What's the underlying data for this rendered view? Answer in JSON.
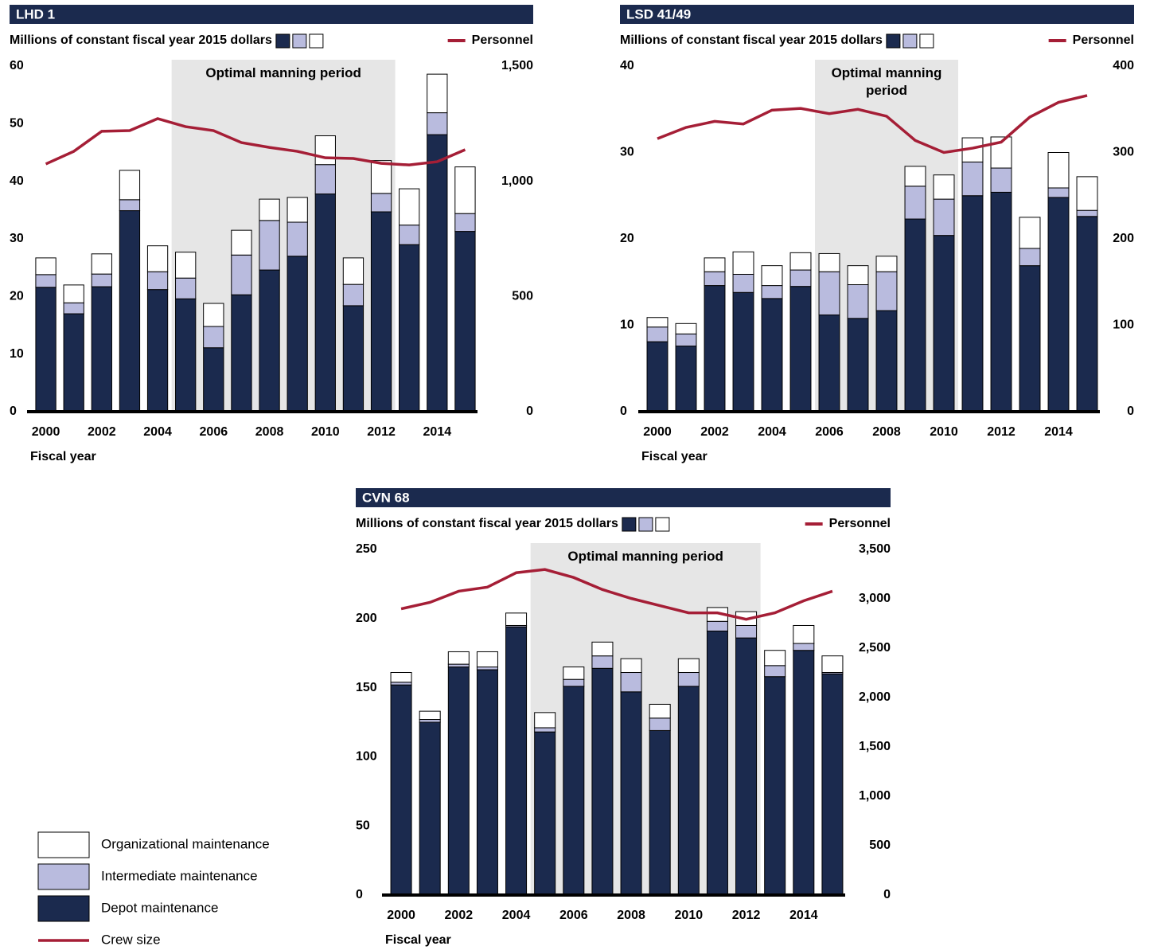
{
  "legend": [
    {
      "name": "Organizational maintenance",
      "color": "#ffffff"
    },
    {
      "name": "Intermediate maintenance",
      "color": "#b9bbde"
    },
    {
      "name": "Depot maintenance",
      "color": "#1b2a4e"
    },
    {
      "name": "Crew size",
      "color": "#a51e36"
    }
  ],
  "chart_data": [
    {
      "type": "bar",
      "title": "LHD 1",
      "subtitle": "Millions of constant fiscal year 2015 dollars",
      "x_label": "Fiscal year",
      "annotation": {
        "text": "Optimal manning period",
        "start": 2005,
        "end": 2012,
        "color": "#e6e6e6"
      },
      "categories": [
        "2000",
        null,
        "2002",
        null,
        "2004",
        null,
        "2006",
        null,
        "2008",
        null,
        "2010",
        null,
        "2012",
        null,
        "2014",
        null
      ],
      "series": [
        {
          "color": "#1b2a4e",
          "values": [
            21.6,
            17.0,
            21.7,
            34.9,
            21.2,
            19.6,
            11.1,
            20.3,
            24.6,
            27.0,
            37.8,
            18.4,
            34.7,
            29.0,
            48.1,
            31.3
          ]
        },
        {
          "color": "#b9bbde",
          "values": [
            2.2,
            1.9,
            2.2,
            1.9,
            3.1,
            3.6,
            3.7,
            6.9,
            8.6,
            5.9,
            5.1,
            3.7,
            3.2,
            3.4,
            3.8,
            3.1
          ]
        },
        {
          "color": "#ffffff",
          "values": [
            2.9,
            3.1,
            3.5,
            5.1,
            4.5,
            4.5,
            4.0,
            4.3,
            3.7,
            4.3,
            5.0,
            4.6,
            5.7,
            6.3,
            6.7,
            8.1
          ]
        }
      ],
      "line": {
        "name": "Personnel",
        "color": "#a51e36",
        "axis": "y2",
        "values": [
          1075,
          1130,
          1217,
          1220,
          1272,
          1237,
          1220,
          1168,
          1147,
          1130,
          1102,
          1099,
          1078,
          1071,
          1085,
          1137
        ]
      },
      "ylim": [
        0,
        60
      ],
      "yticks": [
        0,
        10,
        20,
        30,
        40,
        50,
        60
      ],
      "y2lim": [
        0,
        1500
      ],
      "y2ticks": [
        0,
        500,
        {
          "value": 1000,
          "label": "1,000"
        },
        {
          "value": 1500,
          "label": "1,500"
        }
      ]
    },
    {
      "type": "bar",
      "title": "LSD 41/49",
      "subtitle": "Millions of constant fiscal year 2015 dollars",
      "x_label": "Fiscal year",
      "annotation": {
        "text": "Optimal manning period",
        "start": 2006,
        "end": 2010,
        "color": "#e6e6e6"
      },
      "categories": [
        "2000",
        null,
        "2002",
        null,
        "2004",
        null,
        "2006",
        null,
        "2008",
        null,
        "2010",
        null,
        "2012",
        null,
        "2014",
        null
      ],
      "series": [
        {
          "color": "#1b2a4e",
          "values": [
            8.1,
            7.6,
            14.6,
            13.8,
            13.1,
            14.5,
            11.2,
            10.8,
            11.7,
            22.3,
            20.4,
            25.0,
            25.4,
            16.9,
            24.8,
            22.6
          ]
        },
        {
          "color": "#b9bbde",
          "values": [
            1.7,
            1.4,
            1.6,
            2.1,
            1.5,
            1.9,
            5.0,
            3.9,
            4.5,
            3.8,
            4.2,
            3.9,
            2.8,
            2.0,
            1.1,
            0.7
          ]
        },
        {
          "color": "#ffffff",
          "values": [
            1.1,
            1.2,
            1.6,
            2.6,
            2.3,
            2.0,
            2.1,
            2.2,
            1.8,
            2.3,
            2.8,
            2.8,
            3.6,
            3.6,
            4.1,
            3.9
          ]
        }
      ],
      "line": {
        "name": "Personnel",
        "color": "#a51e36",
        "axis": "y2",
        "values": [
          316,
          329,
          336,
          333,
          349,
          351,
          345,
          350,
          342,
          314,
          300,
          305,
          312,
          341,
          358,
          366
        ]
      },
      "ylim": [
        0,
        40
      ],
      "yticks": [
        0,
        10,
        20,
        30,
        40
      ],
      "y2lim": [
        0,
        400
      ],
      "y2ticks": [
        0,
        100,
        200,
        300,
        400
      ]
    },
    {
      "type": "bar",
      "title": "CVN 68",
      "subtitle": "Millions of constant fiscal year 2015 dollars",
      "x_label": "Fiscal year",
      "annotation": {
        "text": "Optimal manning period",
        "start": 2005,
        "end": 2012,
        "color": "#e6e6e6"
      },
      "categories": [
        "2000",
        null,
        "2002",
        null,
        "2004",
        null,
        "2006",
        null,
        "2008",
        null,
        "2010",
        null,
        "2012",
        null,
        "2014",
        null
      ],
      "series": [
        {
          "color": "#1b2a4e",
          "values": [
            152,
            125,
            165,
            163,
            194,
            118,
            151,
            164,
            147,
            119,
            151,
            191,
            186,
            158,
            177,
            160
          ]
        },
        {
          "color": "#b9bbde",
          "values": [
            2,
            2,
            2,
            2,
            1,
            3,
            5,
            9,
            14,
            9,
            10,
            7,
            9,
            8,
            5,
            1
          ]
        },
        {
          "color": "#ffffff",
          "values": [
            7,
            6,
            9,
            11,
            9,
            11,
            9,
            10,
            10,
            10,
            10,
            10,
            10,
            11,
            13,
            12
          ]
        }
      ],
      "line": {
        "name": "Personnel",
        "color": "#a51e36",
        "axis": "y2",
        "values": [
          2899,
          2964,
          3077,
          3118,
          3264,
          3297,
          3216,
          3094,
          3004,
          2931,
          2858,
          2858,
          2793,
          2858,
          2980,
          3077
        ]
      },
      "ylim": [
        0,
        250
      ],
      "yticks": [
        0,
        50,
        100,
        150,
        200,
        250
      ],
      "y2lim": [
        0,
        3500
      ],
      "y2ticks": [
        0,
        500,
        {
          "value": 1000,
          "label": "1,000"
        },
        {
          "value": 1500,
          "label": "1,500"
        },
        {
          "value": 2000,
          "label": "2,000"
        },
        {
          "value": 2500,
          "label": "2,500"
        },
        {
          "value": 3000,
          "label": "3,000"
        },
        {
          "value": 3500,
          "label": "3,500"
        }
      ]
    }
  ]
}
